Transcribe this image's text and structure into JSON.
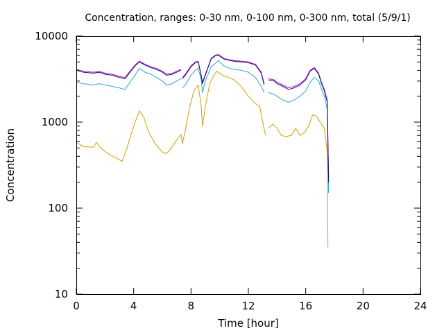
{
  "chart_data": {
    "type": "line",
    "title": "Concentration, ranges: 0-30 nm, 0-100 nm, 0-300 nm, total (5/9/1)",
    "xlabel": "Time [hour]",
    "ylabel": "Concentration",
    "xlim": [
      0,
      24
    ],
    "ylim": [
      10,
      10000
    ],
    "yscale": "log",
    "grid": false,
    "legend": "none",
    "x_ticks": [
      "0",
      "4",
      "8",
      "12",
      "16",
      "20",
      "24"
    ],
    "y_ticks": [
      "10",
      "100",
      "1000",
      "10000"
    ],
    "series": [
      {
        "color": "#d99b00",
        "points": [
          [
            0,
            580
          ],
          [
            0.5,
            520
          ],
          [
            1.2,
            510
          ],
          [
            1.4,
            580
          ],
          [
            1.7,
            500
          ],
          [
            2.2,
            430
          ],
          [
            2.8,
            380
          ],
          [
            3.2,
            350
          ],
          [
            3.5,
            480
          ],
          [
            3.8,
            700
          ],
          [
            4.1,
            1000
          ],
          [
            4.4,
            1350
          ],
          [
            4.7,
            1150
          ],
          [
            5.0,
            800
          ],
          [
            5.5,
            560
          ],
          [
            6.0,
            450
          ],
          [
            6.3,
            430
          ],
          [
            6.7,
            520
          ],
          [
            7.0,
            620
          ],
          [
            7.3,
            720
          ],
          [
            7.4,
            560
          ],
          [
            7.6,
            800
          ],
          [
            7.9,
            1500
          ],
          [
            8.2,
            2300
          ],
          [
            8.5,
            2700
          ],
          [
            8.7,
            1600
          ],
          [
            8.8,
            900
          ],
          [
            9.0,
            1500
          ],
          [
            9.3,
            2800
          ],
          [
            9.6,
            3500
          ],
          [
            9.8,
            3900
          ],
          [
            10.2,
            3500
          ],
          [
            10.6,
            3300
          ],
          [
            11.0,
            3100
          ],
          [
            11.5,
            2600
          ],
          [
            12.0,
            2000
          ],
          [
            12.4,
            1700
          ],
          [
            12.8,
            1500
          ],
          [
            13.0,
            1000
          ],
          [
            13.2,
            700
          ],
          [
            null,
            null
          ],
          [
            13.4,
            850
          ],
          [
            13.7,
            950
          ],
          [
            14.0,
            850
          ],
          [
            14.3,
            700
          ],
          [
            14.6,
            680
          ],
          [
            15.0,
            700
          ],
          [
            15.3,
            850
          ],
          [
            15.6,
            700
          ],
          [
            15.9,
            750
          ],
          [
            16.2,
            900
          ],
          [
            16.5,
            1230
          ],
          [
            16.8,
            1150
          ],
          [
            17.0,
            1000
          ],
          [
            17.3,
            850
          ],
          [
            17.5,
            450
          ],
          [
            17.55,
            35
          ]
        ]
      },
      {
        "color": "#2aa5d0",
        "points": [
          [
            0,
            2900
          ],
          [
            0.5,
            2800
          ],
          [
            1.2,
            2700
          ],
          [
            1.6,
            2800
          ],
          [
            2.0,
            2700
          ],
          [
            2.5,
            2600
          ],
          [
            3.0,
            2500
          ],
          [
            3.4,
            2400
          ],
          [
            3.8,
            3000
          ],
          [
            4.1,
            3500
          ],
          [
            4.4,
            4200
          ],
          [
            4.8,
            3800
          ],
          [
            5.2,
            3600
          ],
          [
            5.6,
            3300
          ],
          [
            6.0,
            3000
          ],
          [
            6.3,
            2700
          ],
          [
            6.7,
            2800
          ],
          [
            7.0,
            3000
          ],
          [
            7.3,
            3200
          ],
          [
            null,
            null
          ],
          [
            7.4,
            2500
          ],
          [
            7.6,
            2700
          ],
          [
            8.0,
            3500
          ],
          [
            8.3,
            4000
          ],
          [
            8.5,
            4200
          ],
          [
            8.7,
            3200
          ],
          [
            8.8,
            2200
          ],
          [
            9.0,
            3000
          ],
          [
            9.4,
            4400
          ],
          [
            9.7,
            4800
          ],
          [
            9.9,
            5200
          ],
          [
            10.3,
            4500
          ],
          [
            10.7,
            4200
          ],
          [
            11.0,
            4100
          ],
          [
            11.5,
            4000
          ],
          [
            12.0,
            3800
          ],
          [
            12.5,
            3300
          ],
          [
            12.9,
            2600
          ],
          [
            13.1,
            2200
          ],
          [
            null,
            null
          ],
          [
            13.4,
            2200
          ],
          [
            13.8,
            2100
          ],
          [
            14.0,
            2000
          ],
          [
            14.4,
            1800
          ],
          [
            14.8,
            1700
          ],
          [
            15.2,
            1800
          ],
          [
            15.6,
            2000
          ],
          [
            16.0,
            2300
          ],
          [
            16.3,
            2900
          ],
          [
            16.6,
            3300
          ],
          [
            16.9,
            3000
          ],
          [
            17.1,
            2400
          ],
          [
            17.3,
            2000
          ],
          [
            17.5,
            1400
          ],
          [
            17.6,
            150
          ]
        ]
      },
      {
        "color": "#c800c8",
        "points": [
          [
            0,
            4100
          ],
          [
            0.5,
            3900
          ],
          [
            1.2,
            3800
          ],
          [
            1.6,
            3900
          ],
          [
            2.0,
            3700
          ],
          [
            2.5,
            3600
          ],
          [
            3.0,
            3400
          ],
          [
            3.4,
            3300
          ],
          [
            3.8,
            4000
          ],
          [
            4.1,
            4600
          ],
          [
            4.4,
            5100
          ],
          [
            4.8,
            4700
          ],
          [
            5.2,
            4400
          ],
          [
            5.6,
            4200
          ],
          [
            6.0,
            3900
          ],
          [
            6.3,
            3600
          ],
          [
            6.7,
            3700
          ],
          [
            7.0,
            3900
          ],
          [
            7.3,
            4100
          ],
          [
            null,
            null
          ],
          [
            7.4,
            3300
          ],
          [
            7.6,
            3600
          ],
          [
            8.0,
            4500
          ],
          [
            8.3,
            5000
          ],
          [
            8.5,
            5100
          ],
          [
            8.7,
            3600
          ],
          [
            8.8,
            2900
          ],
          [
            9.0,
            3600
          ],
          [
            9.4,
            5500
          ],
          [
            9.7,
            6000
          ],
          [
            9.9,
            6100
          ],
          [
            10.3,
            5500
          ],
          [
            10.7,
            5300
          ],
          [
            11.0,
            5200
          ],
          [
            11.5,
            5100
          ],
          [
            12.0,
            5000
          ],
          [
            12.5,
            4700
          ],
          [
            12.9,
            3800
          ],
          [
            13.1,
            2800
          ],
          [
            null,
            null
          ],
          [
            13.4,
            3200
          ],
          [
            13.8,
            3100
          ],
          [
            14.0,
            2900
          ],
          [
            14.4,
            2700
          ],
          [
            14.8,
            2500
          ],
          [
            15.2,
            2600
          ],
          [
            15.6,
            2800
          ],
          [
            16.0,
            3200
          ],
          [
            16.3,
            4000
          ],
          [
            16.6,
            4300
          ],
          [
            16.9,
            3700
          ],
          [
            17.1,
            2900
          ],
          [
            17.3,
            2400
          ],
          [
            17.5,
            1800
          ],
          [
            17.6,
            220
          ]
        ]
      },
      {
        "color": "#0a1a6e",
        "points": [
          [
            0,
            4000
          ],
          [
            0.5,
            3800
          ],
          [
            1.2,
            3700
          ],
          [
            1.6,
            3800
          ],
          [
            2.0,
            3600
          ],
          [
            2.5,
            3500
          ],
          [
            3.0,
            3300
          ],
          [
            3.4,
            3200
          ],
          [
            3.8,
            3900
          ],
          [
            4.1,
            4500
          ],
          [
            4.4,
            5000
          ],
          [
            4.8,
            4600
          ],
          [
            5.2,
            4300
          ],
          [
            5.6,
            4100
          ],
          [
            6.0,
            3800
          ],
          [
            6.3,
            3500
          ],
          [
            6.7,
            3600
          ],
          [
            7.0,
            3800
          ],
          [
            7.3,
            4000
          ],
          [
            null,
            null
          ],
          [
            7.4,
            3200
          ],
          [
            7.6,
            3500
          ],
          [
            8.0,
            4400
          ],
          [
            8.3,
            4900
          ],
          [
            8.5,
            5000
          ],
          [
            8.7,
            3500
          ],
          [
            8.8,
            2800
          ],
          [
            9.0,
            3500
          ],
          [
            9.4,
            5400
          ],
          [
            9.7,
            5900
          ],
          [
            9.9,
            6000
          ],
          [
            10.3,
            5400
          ],
          [
            10.7,
            5200
          ],
          [
            11.0,
            5100
          ],
          [
            11.5,
            5000
          ],
          [
            12.0,
            4900
          ],
          [
            12.5,
            4600
          ],
          [
            12.9,
            3700
          ],
          [
            13.1,
            2700
          ],
          [
            null,
            null
          ],
          [
            13.4,
            3100
          ],
          [
            13.8,
            3000
          ],
          [
            14.0,
            2800
          ],
          [
            14.4,
            2600
          ],
          [
            14.8,
            2400
          ],
          [
            15.2,
            2500
          ],
          [
            15.6,
            2700
          ],
          [
            16.0,
            3100
          ],
          [
            16.3,
            3900
          ],
          [
            16.6,
            4200
          ],
          [
            16.9,
            3600
          ],
          [
            17.1,
            2800
          ],
          [
            17.3,
            2300
          ],
          [
            17.5,
            1700
          ],
          [
            17.6,
            200
          ]
        ]
      }
    ]
  }
}
